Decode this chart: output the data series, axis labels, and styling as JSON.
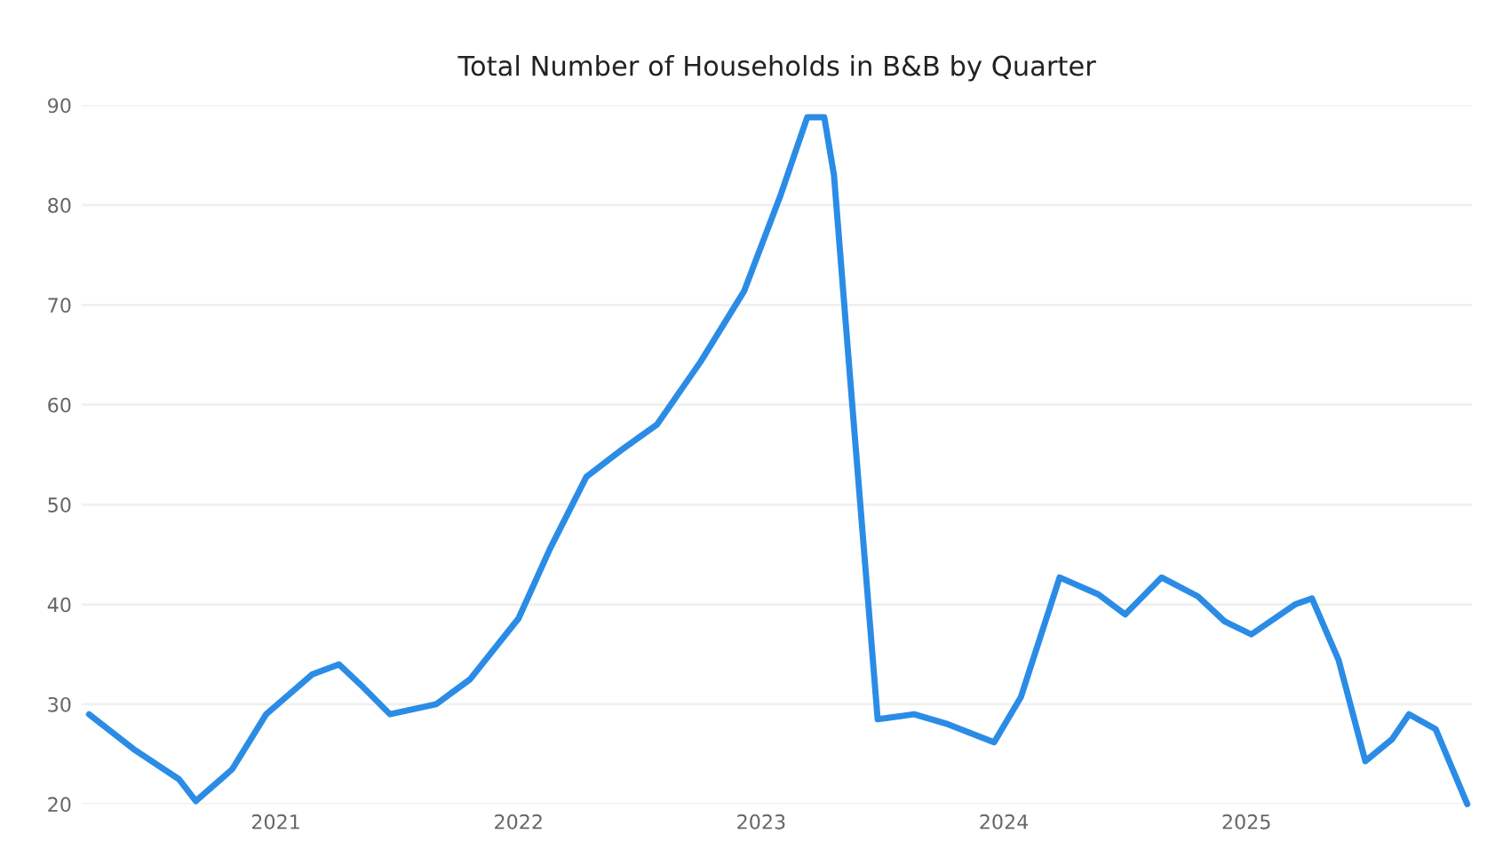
{
  "chart_data": {
    "type": "line",
    "title": "Total Number of Households in B&B by Quarter",
    "x": [
      2020.23,
      2020.42,
      2020.6,
      2020.67,
      2020.82,
      2020.96,
      2021.15,
      2021.26,
      2021.36,
      2021.47,
      2021.66,
      2021.8,
      2022.0,
      2022.13,
      2022.28,
      2022.42,
      2022.57,
      2022.75,
      2022.93,
      2023.08,
      2023.19,
      2023.26,
      2023.3,
      2023.37,
      2023.48,
      2023.63,
      2023.77,
      2023.96,
      2024.07,
      2024.23,
      2024.39,
      2024.5,
      2024.65,
      2024.8,
      2024.91,
      2025.02,
      2025.2,
      2025.27,
      2025.38,
      2025.49,
      2025.6,
      2025.67,
      2025.78,
      2025.91
    ],
    "series": [
      {
        "color": "#2b8ce6",
        "values": [
          29,
          25.4,
          22.5,
          20.3,
          23.5,
          29,
          33,
          34,
          31.7,
          29,
          30,
          32.5,
          38.6,
          45.6,
          52.8,
          55.4,
          58,
          64.3,
          71.4,
          81,
          88.8,
          88.8,
          83,
          61.6,
          28.5,
          29,
          28,
          26.2,
          30.7,
          42.7,
          41,
          39,
          42.7,
          40.8,
          38.3,
          37,
          40,
          40.6,
          34.4,
          24.3,
          26.5,
          29,
          27.5,
          20
        ]
      }
    ],
    "xlim": [
      2020.2,
      2025.93
    ],
    "ylim": [
      20,
      90
    ],
    "xticks": [
      2021,
      2022,
      2023,
      2024,
      2025
    ],
    "yticks": [
      20,
      30,
      40,
      50,
      60,
      70,
      80,
      90
    ],
    "grid": "y",
    "marker": "none",
    "line_style": "solid"
  }
}
